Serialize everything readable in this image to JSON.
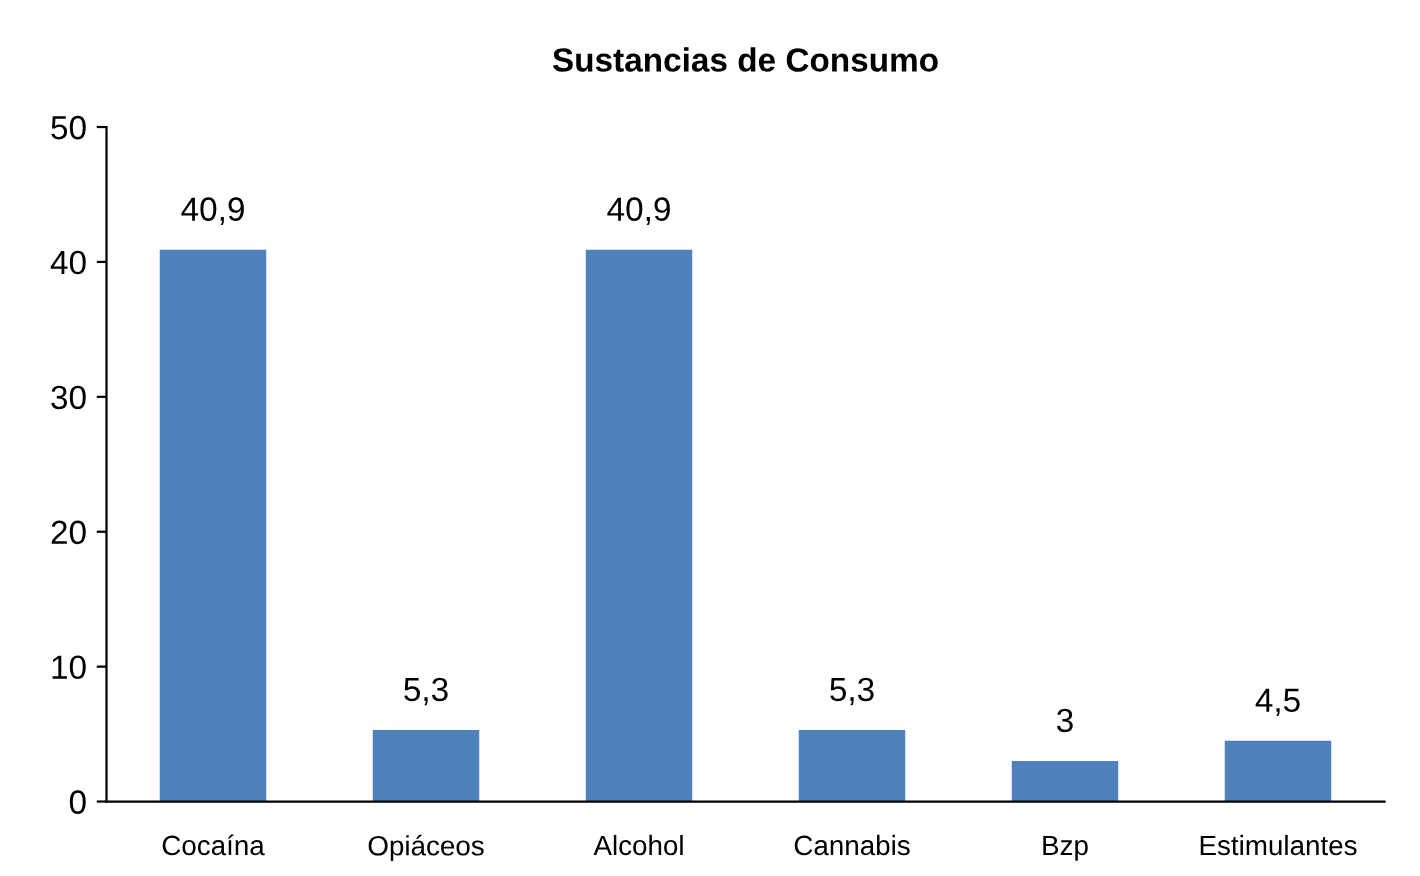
{
  "chart_data": {
    "type": "bar",
    "title": "Sustancias de Consumo",
    "categories": [
      "Cocaína",
      "Opiáceos",
      "Alcohol",
      "Cannabis",
      "Bzp",
      "Estimulantes"
    ],
    "values": [
      40.9,
      5.3,
      40.9,
      5.3,
      3,
      4.5
    ],
    "value_labels": [
      "40,9",
      "5,3",
      "40,9",
      "5,3",
      "3",
      "4,5"
    ],
    "color": "#4f81bd",
    "ylim": [
      0,
      50
    ],
    "yticks": [
      0,
      10,
      20,
      30,
      40,
      50
    ],
    "grid": false,
    "legend": false
  }
}
